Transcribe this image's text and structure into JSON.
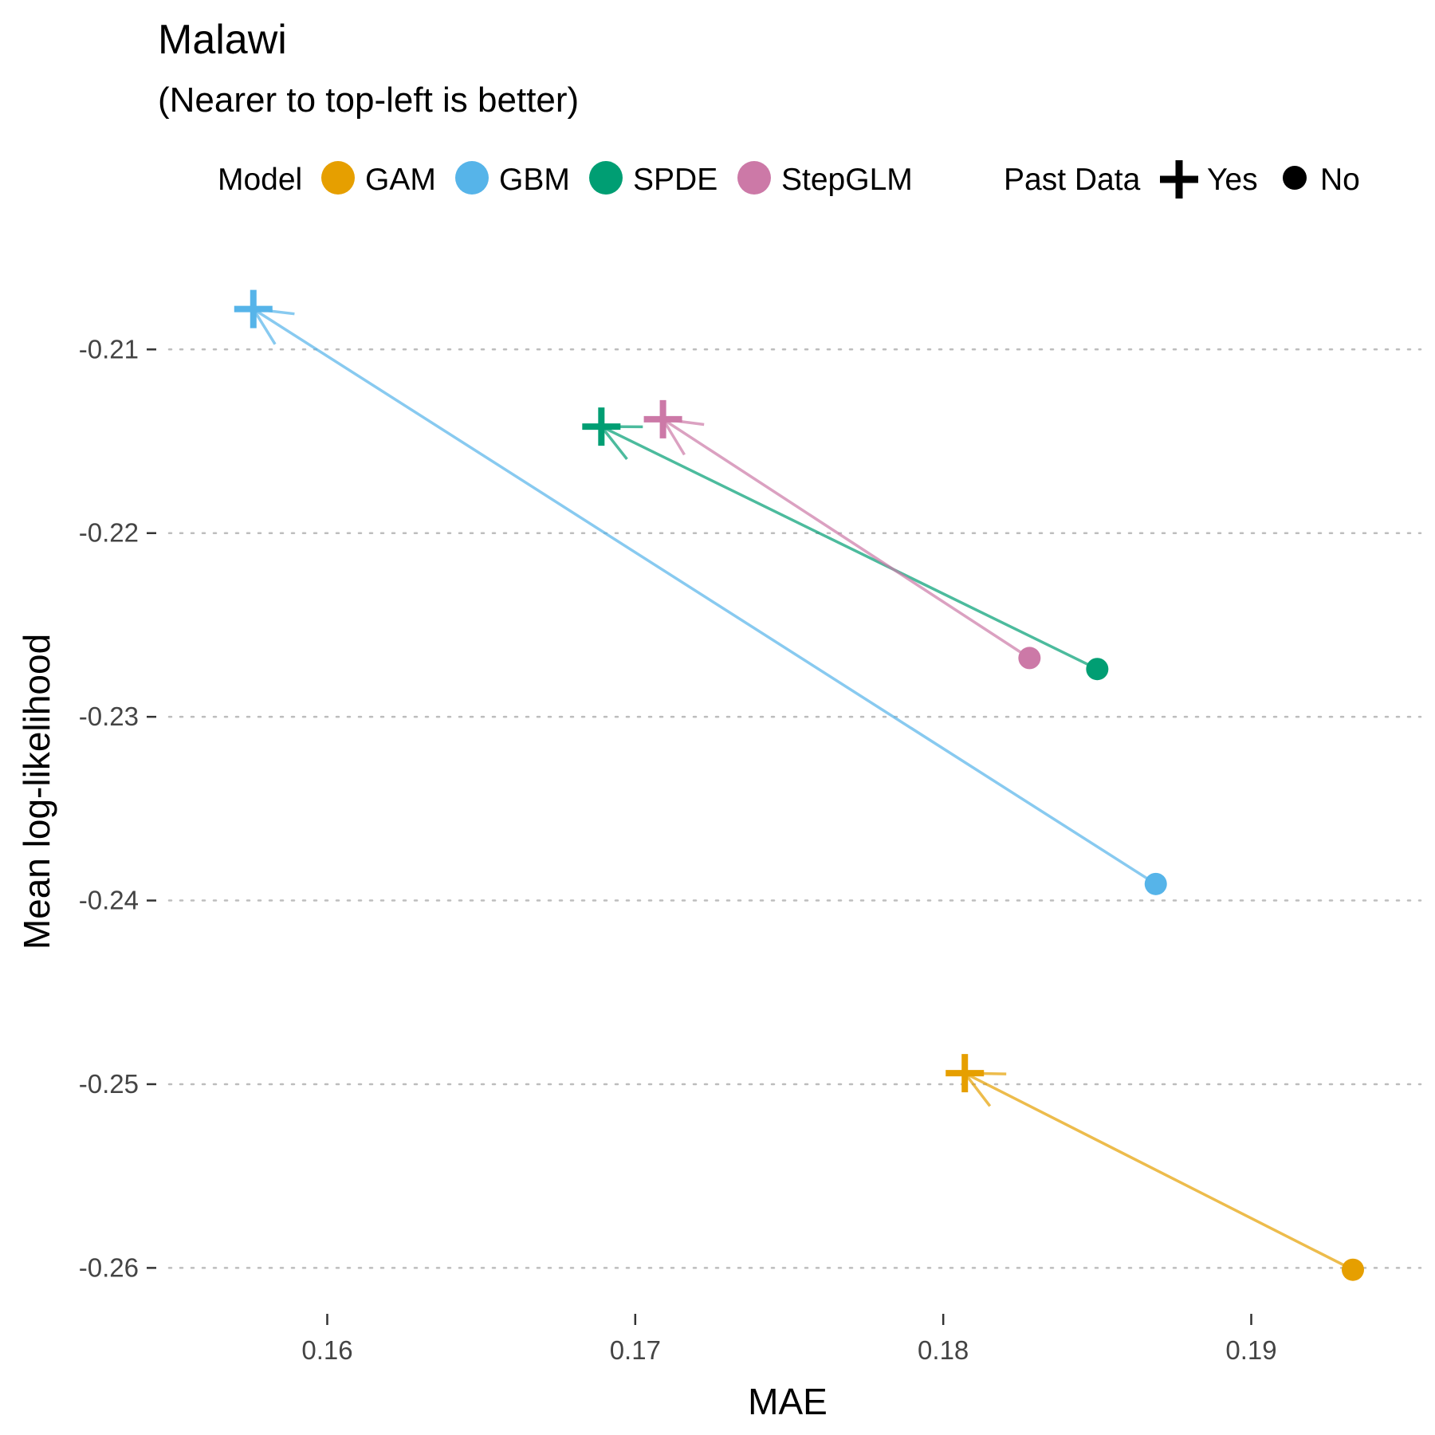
{
  "chart_data": {
    "type": "scatter",
    "title": "Malawi",
    "subtitle": "(Nearer to top-left is better)",
    "xlabel": "MAE",
    "ylabel": "Mean log-likelihood",
    "xlim": [
      0.1545,
      0.1955
    ],
    "ylim": [
      -0.2625,
      -0.2053
    ],
    "xticks": [
      0.16,
      0.17,
      0.18,
      0.19
    ],
    "xtick_labels": [
      "0.16",
      "0.17",
      "0.18",
      "0.19"
    ],
    "yticks": [
      -0.21,
      -0.22,
      -0.23,
      -0.24,
      -0.25,
      -0.26
    ],
    "ytick_labels": [
      "-0.21",
      "-0.22",
      "-0.23",
      "-0.24",
      "-0.25",
      "-0.26"
    ],
    "grid": "horizontal dotted",
    "legend_position": "top",
    "legend_color_title": "Model",
    "legend_shape_title": "Past Data",
    "shape_legend": [
      {
        "label": "Yes",
        "shape": "cross"
      },
      {
        "label": "No",
        "shape": "circle"
      }
    ],
    "series": [
      {
        "name": "GAM",
        "color": "#E69F00",
        "no": {
          "x": 0.1933,
          "y": -0.2601
        },
        "yes": {
          "x": 0.1807,
          "y": -0.2494
        }
      },
      {
        "name": "GBM",
        "color": "#56B4E9",
        "no": {
          "x": 0.1869,
          "y": -0.2391
        },
        "yes": {
          "x": 0.1576,
          "y": -0.2078
        }
      },
      {
        "name": "SPDE",
        "color": "#009E73",
        "no": {
          "x": 0.185,
          "y": -0.2274
        },
        "yes": {
          "x": 0.1689,
          "y": -0.2142
        }
      },
      {
        "name": "StepGLM",
        "color": "#CC79A7",
        "no": {
          "x": 0.1828,
          "y": -0.2268
        },
        "yes": {
          "x": 0.1709,
          "y": -0.2138
        }
      }
    ]
  }
}
